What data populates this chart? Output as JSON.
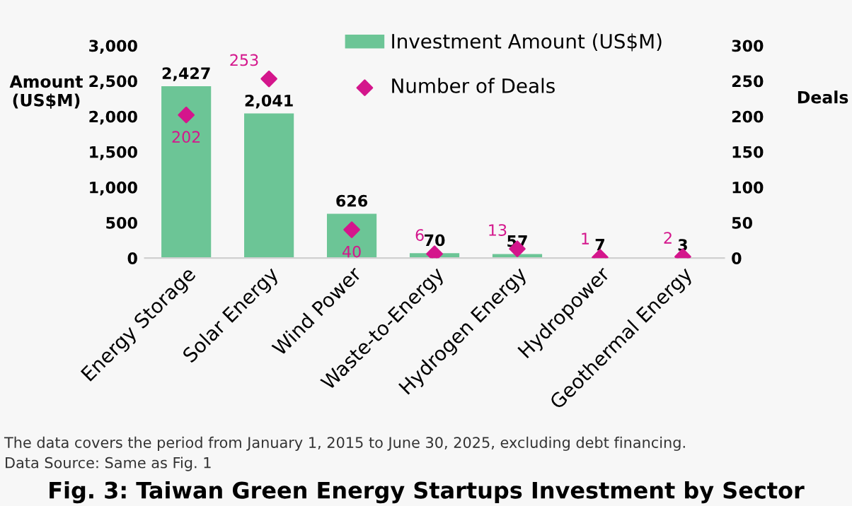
{
  "chart_data": {
    "type": "bar",
    "title": "Fig. 3: Taiwan Green Energy Startups Investment by Sector",
    "ylabel": "Amount\n(US$M)",
    "y2label": "Deals",
    "categories": [
      "Energy Storage",
      "Solar Energy",
      "Wind Power",
      "Waste-to-Energy",
      "Hydrogen Energy",
      "Hydropower",
      "Geothermal Energy"
    ],
    "series": [
      {
        "name": "Investment Amount (US$M)",
        "color": "#6cc596",
        "values": [
          2427,
          2041,
          626,
          70,
          57,
          7,
          3
        ],
        "value_labels": [
          "2,427",
          "2,041",
          "626",
          "70",
          "57",
          "7",
          "3"
        ]
      },
      {
        "name": "Number of Deals",
        "type": "scatter",
        "axis": "y2",
        "color": "#d4168c",
        "marker": "diamond",
        "values": [
          202,
          253,
          40,
          6,
          13,
          1,
          2
        ],
        "value_labels": [
          "202",
          "253",
          "40",
          "6",
          "13",
          "1",
          "2"
        ]
      }
    ],
    "ylim": [
      0,
      3000
    ],
    "yticks": [
      {
        "value": 0,
        "label": "0"
      },
      {
        "value": 500,
        "label": "500"
      },
      {
        "value": 1000,
        "label": "1,000"
      },
      {
        "value": 1500,
        "label": "1,500"
      },
      {
        "value": 2000,
        "label": "2,000"
      },
      {
        "value": 2500,
        "label": "2,500"
      },
      {
        "value": 3000,
        "label": "3,000"
      }
    ],
    "y2lim": [
      0,
      300
    ],
    "y2ticks": [
      0,
      50,
      100,
      150,
      200,
      250,
      300
    ],
    "legend": "top",
    "grid": false,
    "annotations": [
      "The data covers the period from January 1, 2015 to June 30, 2025, excluding debt financing.",
      "Data Source: Same as Fig. 1"
    ]
  }
}
